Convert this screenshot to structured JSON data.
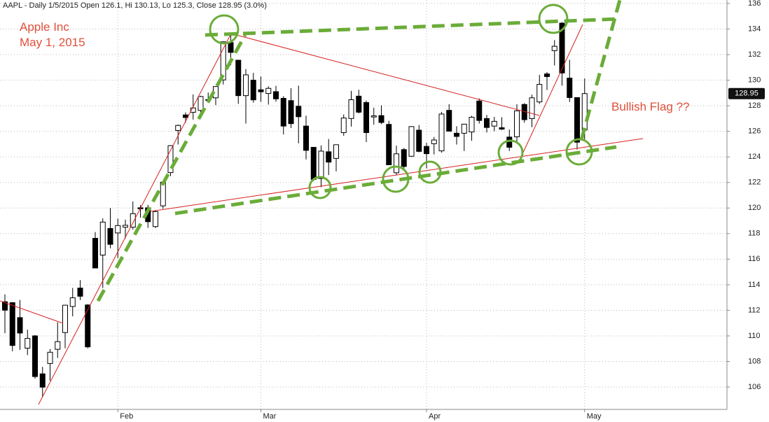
{
  "chart_data": {
    "type": "candlestick",
    "title": "AAPL - Daily 1/5/2015 Open 126.1, Hi 130.13, Lo 125.3, Close 128.95 (3.0%)",
    "annotations": [
      "Apple Inc",
      "May 1, 2015",
      "Bullish Flag ??"
    ],
    "categories": [
      null,
      null,
      null,
      null,
      null,
      null,
      null,
      null,
      null,
      null,
      null,
      null,
      null,
      null,
      null,
      "Feb",
      null,
      null,
      null,
      null,
      null,
      null,
      null,
      null,
      null,
      null,
      null,
      null,
      null,
      null,
      null,
      null,
      null,
      null,
      "Mar",
      null,
      null,
      null,
      null,
      null,
      null,
      null,
      null,
      null,
      null,
      null,
      null,
      null,
      null,
      null,
      null,
      null,
      null,
      null,
      null,
      null,
      "Apr",
      null,
      null,
      null,
      null,
      null,
      null,
      null,
      null,
      null,
      null,
      null,
      null,
      null,
      null,
      null,
      null,
      null,
      null,
      null,
      null,
      "May"
    ],
    "open": [
      112.67,
      112.6,
      111.43,
      109.04,
      110.0,
      107.03,
      107.84,
      108.95,
      110.26,
      112.3,
      113.74,
      112.42,
      117.63,
      116.32,
      118.4,
      118.05,
      118.5,
      118.5,
      120.02,
      120.02,
      118.55,
      120.17,
      122.77,
      126.06,
      127.28,
      127.49,
      127.63,
      128.48,
      128.62,
      130.02,
      132.94,
      131.56,
      128.79,
      130.0,
      129.25,
      128.96,
      129.1,
      128.58,
      128.4,
      127.96,
      126.41,
      124.75,
      122.31,
      124.4,
      123.88,
      125.9,
      127.0,
      128.75,
      128.25,
      127.12,
      127.23,
      126.54,
      122.76,
      124.57,
      124.05,
      126.09,
      124.82,
      125.03,
      124.47,
      127.64,
      125.85,
      125.85,
      125.95,
      128.37,
      127.0,
      126.41,
      126.28,
      125.55,
      125.57,
      128.1,
      126.99,
      128.3,
      130.49,
      132.31,
      134.46,
      130.16,
      128.64,
      126.1
    ],
    "high": [
      113.25,
      112.63,
      112.8,
      110.49,
      110.06,
      107.58,
      108.97,
      111.06,
      112.43,
      113.75,
      114.36,
      112.48,
      118.12,
      119.19,
      120.0,
      119.17,
      119.09,
      120.51,
      120.23,
      120.25,
      119.84,
      122.15,
      124.92,
      126.53,
      127.48,
      128.88,
      128.78,
      129.03,
      129.5,
      133.0,
      133.6,
      131.6,
      130.87,
      130.57,
      130.28,
      129.52,
      129.56,
      128.75,
      129.37,
      129.57,
      127.22,
      124.77,
      124.9,
      125.4,
      124.95,
      127.32,
      129.16,
      129.25,
      128.4,
      127.85,
      128.04,
      126.82,
      124.88,
      124.7,
      126.4,
      126.49,
      125.12,
      125.56,
      127.51,
      128.12,
      126.4,
      126.58,
      127.21,
      128.57,
      127.29,
      127.13,
      127.1,
      126.14,
      128.12,
      128.2,
      128.87,
      130.42,
      130.63,
      133.13,
      134.54,
      131.59,
      128.64,
      130.13
    ],
    "low": [
      110.21,
      108.8,
      108.91,
      108.5,
      106.66,
      105.2,
      106.5,
      108.27,
      109.03,
      111.53,
      112.8,
      109.03,
      115.31,
      113.75,
      116.85,
      116.08,
      117.61,
      118.31,
      119.25,
      118.45,
      118.43,
      119.94,
      122.5,
      124.97,
      126.67,
      126.92,
      127.45,
      128.33,
      128.05,
      129.66,
      131.17,
      128.15,
      126.61,
      128.24,
      128.3,
      128.09,
      128.32,
      125.76,
      126.26,
      125.06,
      123.8,
      122.11,
      121.63,
      122.58,
      122.87,
      125.65,
      126.37,
      127.4,
      125.16,
      126.52,
      126.56,
      123.38,
      122.6,
      122.91,
      124.0,
      124.36,
      123.1,
      124.19,
      124.33,
      125.98,
      124.97,
      124.46,
      125.26,
      126.61,
      125.91,
      126.01,
      126.11,
      124.46,
      125.17,
      126.67,
      126.32,
      128.14,
      129.23,
      131.15,
      129.57,
      128.3,
      124.58,
      125.3
    ],
    "close": [
      112.01,
      109.25,
      110.22,
      109.8,
      106.82,
      105.99,
      108.72,
      109.55,
      112.4,
      112.98,
      113.1,
      109.14,
      115.31,
      118.9,
      117.16,
      118.63,
      118.65,
      119.56,
      119.94,
      118.93,
      119.72,
      122.02,
      124.88,
      126.46,
      127.08,
      127.83,
      128.72,
      128.45,
      129.5,
      133.0,
      132.17,
      128.79,
      130.415,
      128.46,
      129.09,
      129.36,
      128.54,
      126.41,
      126.6,
      127.14,
      124.51,
      122.24,
      124.45,
      123.59,
      124.95,
      127.04,
      128.47,
      127.495,
      125.9,
      127.21,
      126.69,
      123.38,
      124.24,
      123.25,
      126.37,
      124.43,
      124.25,
      125.32,
      127.35,
      126.01,
      125.6,
      126.56,
      127.1,
      126.85,
      126.3,
      126.78,
      126.17,
      124.75,
      127.6,
      126.91,
      128.62,
      129.67,
      130.28,
      132.65,
      130.56,
      128.64,
      125.15,
      128.95
    ],
    "last_price": 128.95,
    "ylim": [
      104.25,
      136.27
    ],
    "yticks": [
      106,
      108,
      110,
      112,
      114,
      116,
      118,
      120,
      122,
      124,
      126,
      128,
      130,
      132,
      134,
      136
    ],
    "grid": true,
    "up_color": "#ffffff",
    "down_color": "#000000"
  }
}
